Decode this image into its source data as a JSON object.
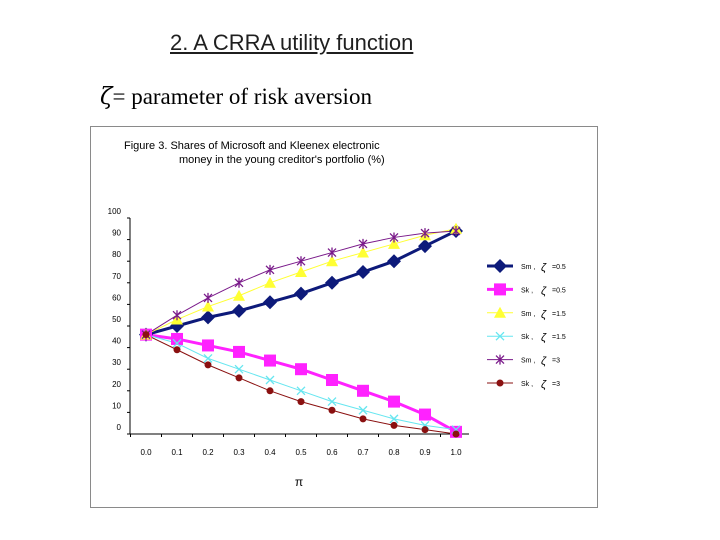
{
  "slide": {
    "title": "2. A CRRA utility function",
    "subtitle_symbol": "ζ",
    "subtitle_text": "= parameter of risk aversion"
  },
  "colors": {
    "sm_05": "#0d1a7a",
    "sk_05": "#ff22ff",
    "sm_15": "#ffff33",
    "sk_15": "#66e6f0",
    "sm_3": "#7a1a8a",
    "sk_3": "#8a1010"
  },
  "chart_data": {
    "type": "line",
    "title_line1": "Figure 3. Shares of Microsoft and Kleenex electronic",
    "title_line2": "money in the young creditor's portfolio (%)",
    "xlabel": "π",
    "ylabel": "",
    "x": [
      0.0,
      0.1,
      0.2,
      0.3,
      0.4,
      0.5,
      0.6,
      0.7,
      0.8,
      0.9,
      1.0
    ],
    "x_tick_labels": [
      "0.0",
      "0.1",
      "0.2",
      "0.3",
      "0.4",
      "0.5",
      "0.6",
      "0.7",
      "0.8",
      "0.9",
      "1.0"
    ],
    "ylim": [
      0,
      100
    ],
    "y_ticks": [
      0,
      10,
      20,
      30,
      40,
      50,
      60,
      70,
      80,
      90,
      100
    ],
    "grid": false,
    "legend_position": "right",
    "series": [
      {
        "name": "Sm",
        "legend_label": "Sm ,",
        "zeta_symbol": "ζ",
        "zeta_value": "=0.5",
        "marker": "diamond",
        "color_key": "sm_05",
        "values": [
          46,
          50,
          54,
          57,
          61,
          65,
          70,
          75,
          80,
          87,
          94
        ]
      },
      {
        "name": "Sk",
        "legend_label": "Sk ,",
        "zeta_symbol": "ζ",
        "zeta_value": "=0.5",
        "marker": "square",
        "color_key": "sk_05",
        "values": [
          46,
          44,
          41,
          38,
          34,
          30,
          25,
          20,
          15,
          9,
          1
        ]
      },
      {
        "name": "Sm",
        "legend_label": "Sm ,",
        "zeta_symbol": "ζ",
        "zeta_value": "=1.5",
        "marker": "triangle",
        "color_key": "sm_15",
        "values": [
          46,
          53,
          59,
          64,
          70,
          75,
          80,
          84,
          88,
          92,
          95
        ]
      },
      {
        "name": "Sk",
        "legend_label": "Sk ,",
        "zeta_symbol": "ζ",
        "zeta_value": "=1.5",
        "marker": "x",
        "color_key": "sk_15",
        "values": [
          46,
          42,
          35,
          30,
          25,
          20,
          15,
          11,
          7,
          4,
          2
        ]
      },
      {
        "name": "Sm",
        "legend_label": "Sm ,",
        "zeta_symbol": "ζ",
        "zeta_value": "=3",
        "marker": "star",
        "color_key": "sm_3",
        "values": [
          46,
          55,
          63,
          70,
          76,
          80,
          84,
          88,
          91,
          93,
          94
        ]
      },
      {
        "name": "Sk",
        "legend_label": "Sk ,",
        "zeta_symbol": "ζ",
        "zeta_value": "=3",
        "marker": "circle",
        "color_key": "sk_3",
        "values": [
          46,
          39,
          32,
          26,
          20,
          15,
          11,
          7,
          4,
          2,
          0
        ]
      }
    ]
  }
}
